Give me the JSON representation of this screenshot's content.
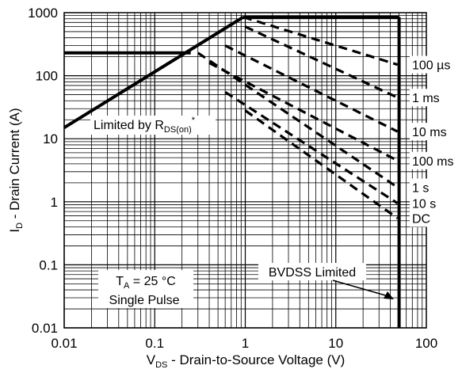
{
  "chart_data": {
    "type": "line",
    "x_scale": "log",
    "y_scale": "log",
    "xlim": [
      0.01,
      100
    ],
    "ylim": [
      0.01,
      1000
    ],
    "grid": true,
    "xlabel": {
      "main": "V",
      "sub": "DS",
      "rest": " - Drain-to-Source Voltage (V)"
    },
    "ylabel": {
      "main": "I",
      "sub": "D",
      "rest": " - Drain Current (A)"
    },
    "x_ticks": [
      {
        "value": 0.01,
        "label": "0.01"
      },
      {
        "value": 0.1,
        "label": "0.1"
      },
      {
        "value": 1,
        "label": "1"
      },
      {
        "value": 10,
        "label": "10"
      },
      {
        "value": 100,
        "label": "100"
      }
    ],
    "y_ticks": [
      {
        "value": 1000,
        "label": "1000"
      },
      {
        "value": 100,
        "label": "100"
      },
      {
        "value": 10,
        "label": "10"
      },
      {
        "value": 1,
        "label": "1"
      },
      {
        "value": 0.1,
        "label": "0.1"
      },
      {
        "value": 0.01,
        "label": "0.01"
      }
    ],
    "boundary": {
      "rds_on_line": {
        "x": [
          0.01,
          0.95
        ],
        "y": [
          15,
          850
        ]
      },
      "package_limit": {
        "x": [
          0.01,
          0.25
        ],
        "y": [
          230,
          230
        ]
      },
      "max_current": {
        "x": [
          0.95,
          50
        ],
        "y": [
          850,
          850
        ]
      },
      "bvdss": {
        "x": [
          50,
          50
        ],
        "y": [
          0.01,
          850
        ]
      }
    },
    "series": [
      {
        "name": "100 µs",
        "x": [
          0.95,
          48
        ],
        "y": [
          850,
          150
        ]
      },
      {
        "name": "1 ms",
        "x": [
          1.0,
          48
        ],
        "y": [
          600,
          45
        ]
      },
      {
        "name": "10 ms",
        "x": [
          0.6,
          48
        ],
        "y": [
          300,
          13
        ]
      },
      {
        "name": "100 ms",
        "x": [
          0.4,
          48
        ],
        "y": [
          160,
          4.5
        ]
      },
      {
        "name": "1 s",
        "x": [
          0.3,
          48
        ],
        "y": [
          230,
          1.7
        ]
      },
      {
        "name": "10 s",
        "x": [
          0.6,
          48
        ],
        "y": [
          55,
          0.95
        ]
      },
      {
        "name": "DC",
        "x": [
          1.0,
          48
        ],
        "y": [
          28,
          0.55
        ]
      }
    ],
    "annotations": {
      "rds": {
        "text": "Limited by R",
        "sub": "DS(on)",
        "sup": "*"
      },
      "temp": {
        "prefix": "T",
        "sub": "A",
        "rest": " = 25 °C"
      },
      "pulse": "Single Pulse",
      "bvdss": "BVDSS Limited"
    }
  }
}
